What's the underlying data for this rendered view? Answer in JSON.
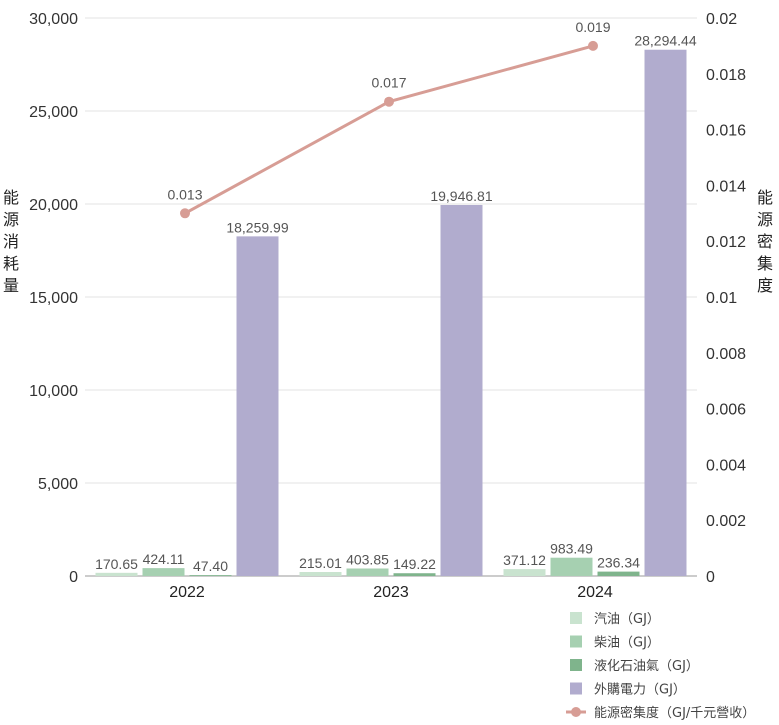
{
  "chart_data": {
    "type": "bar",
    "categories": [
      "2022",
      "2023",
      "2024"
    ],
    "series": [
      {
        "name": "汽油（GJ）",
        "color": "#c9e3cf",
        "values": [
          170.65,
          215.01,
          371.12
        ],
        "labels": [
          "170.65",
          "215.01",
          "371.12"
        ]
      },
      {
        "name": "柴油（GJ）",
        "color": "#a6d0b1",
        "values": [
          424.11,
          403.85,
          983.49
        ],
        "labels": [
          "424.11",
          "403.85",
          "983.49"
        ]
      },
      {
        "name": "液化石油氣（GJ）",
        "color": "#7fb48c",
        "values": [
          47.4,
          149.22,
          236.34
        ],
        "labels": [
          "47.40",
          "149.22",
          "236.34"
        ]
      },
      {
        "name": "外購電力（GJ）",
        "color": "#b1acce",
        "values": [
          18259.99,
          19946.81,
          28294.44
        ],
        "labels": [
          "18,259.99",
          "19,946.81",
          "28,294.44"
        ]
      }
    ],
    "line_series": {
      "name": "能源密集度（GJ/千元營收）",
      "color": "#d79d95",
      "values": [
        0.013,
        0.017,
        0.019
      ],
      "labels": [
        "0.013",
        "0.017",
        "0.019"
      ]
    },
    "ylabel": "能源消耗量",
    "y2label": "能源密集度",
    "ylim": [
      0,
      30000
    ],
    "y2lim": [
      0,
      0.02
    ],
    "yticks": [
      "0",
      "5,000",
      "10,000",
      "15,000",
      "20,000",
      "25,000",
      "30,000"
    ],
    "y2ticks": [
      "0",
      "0.002",
      "0.004",
      "0.006",
      "0.008",
      "0.01",
      "0.012",
      "0.014",
      "0.016",
      "0.018",
      "0.02"
    ],
    "grid": true,
    "legend_position": "bottom-right"
  }
}
